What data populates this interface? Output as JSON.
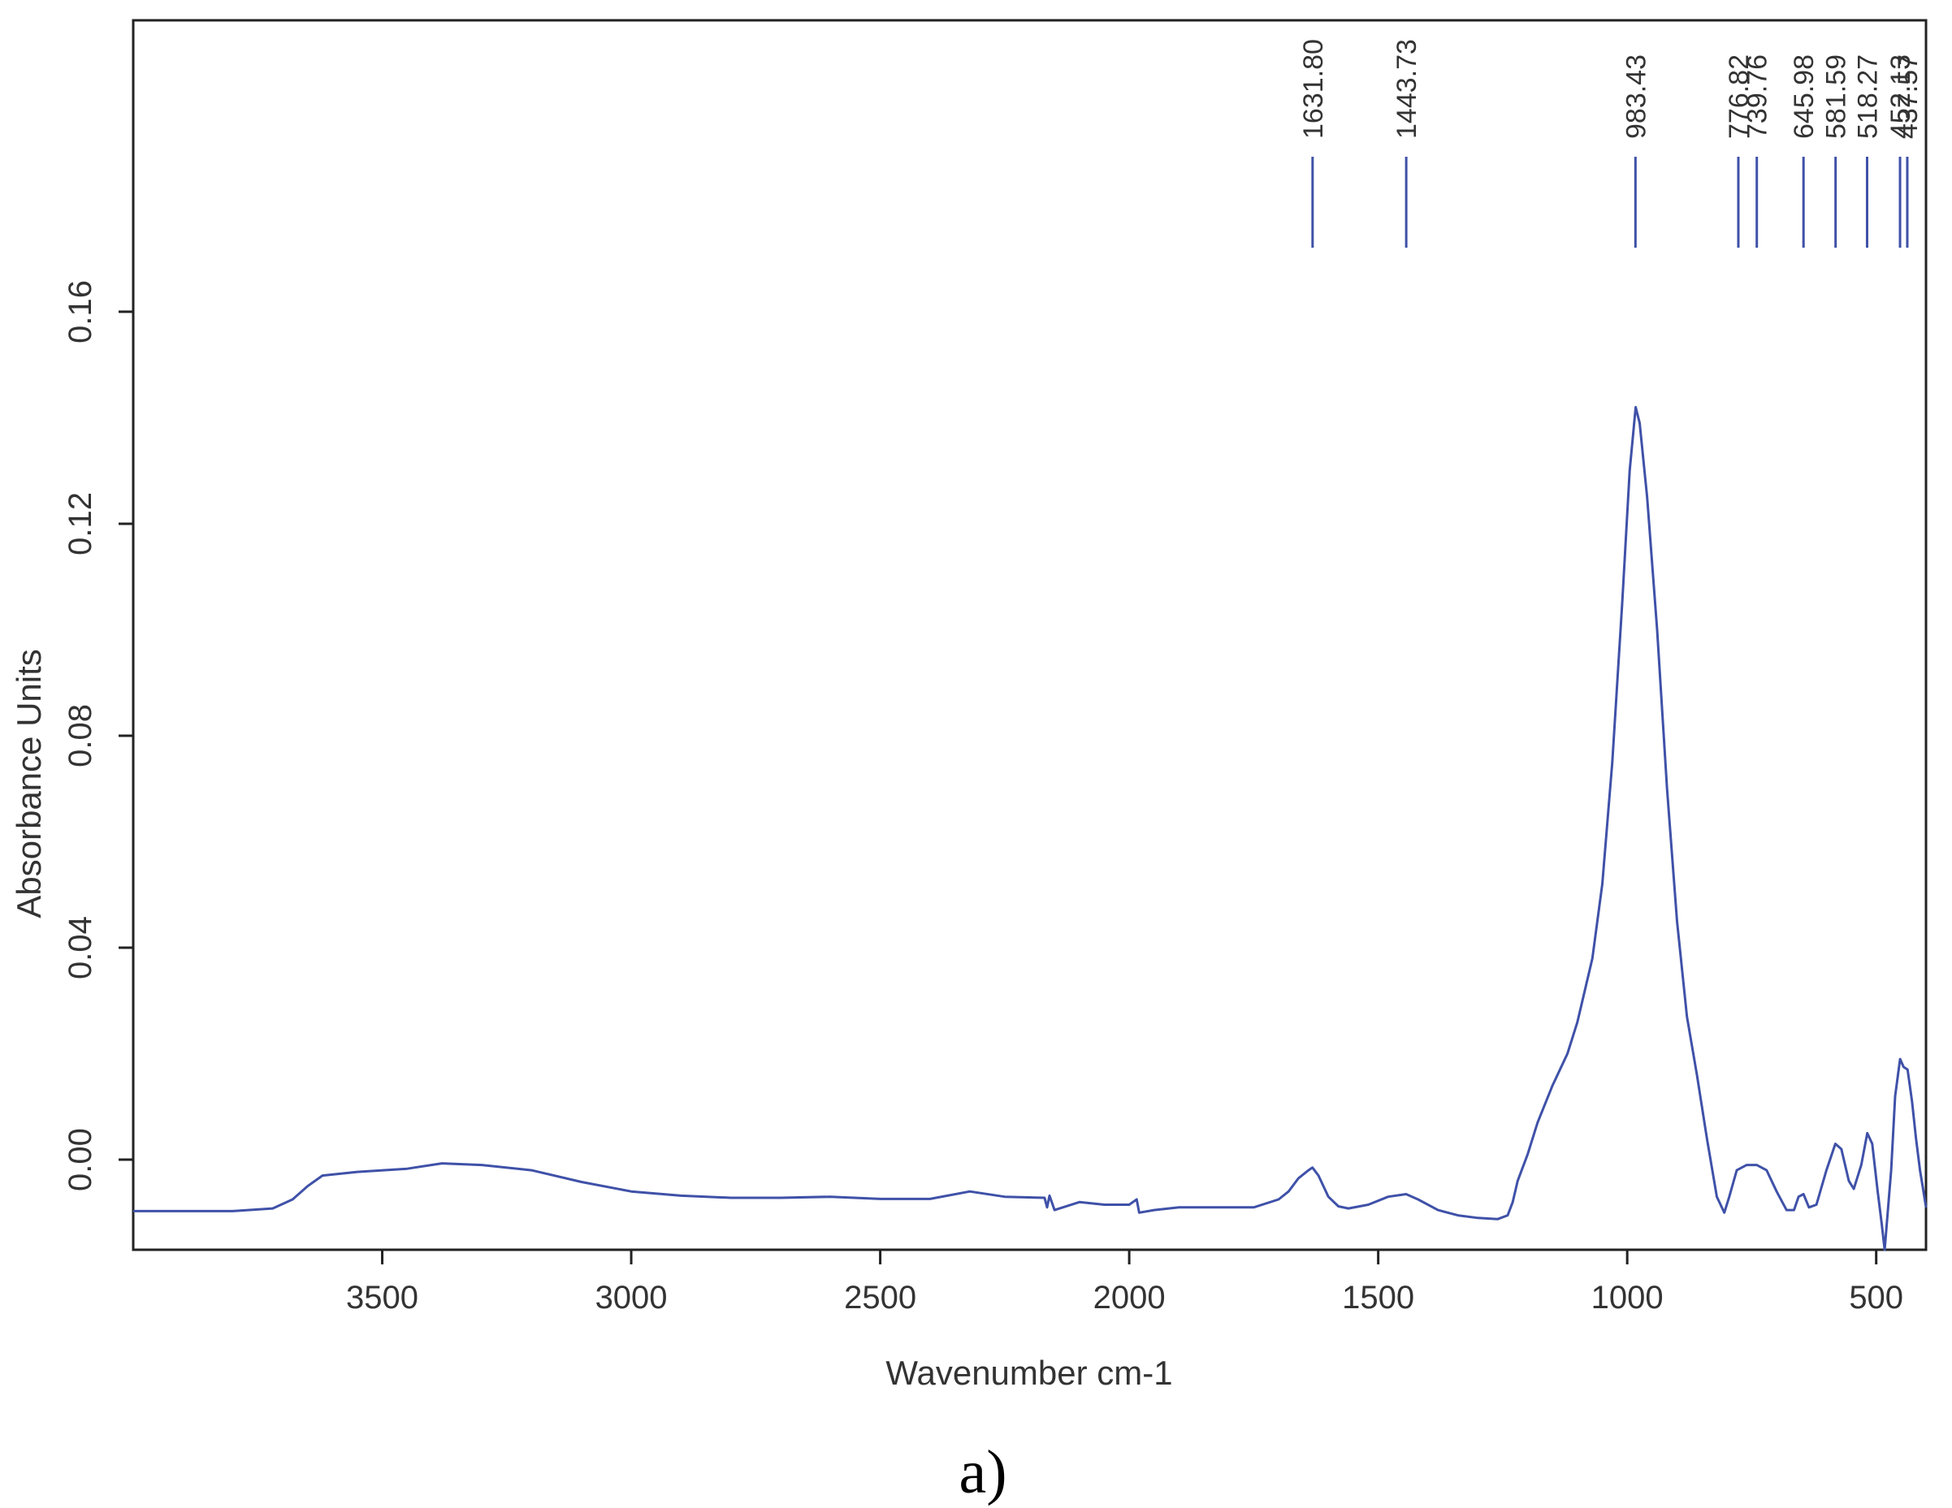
{
  "figure": {
    "panel_label": "a)"
  },
  "colors": {
    "trace": "#3f51a8",
    "axes": "#222222",
    "text": "#333333"
  },
  "chart_data": {
    "type": "line",
    "title": "",
    "xlabel": "Wavenumber cm-1",
    "ylabel": "Absorbance Units",
    "xlim": [
      4000,
      400
    ],
    "ylim": [
      -0.017,
      0.215
    ],
    "x_reversed": true,
    "grid": false,
    "legend": "none",
    "x_ticks": [
      3500,
      3000,
      2500,
      2000,
      1500,
      1000,
      500
    ],
    "x_tick_labels": [
      "3500",
      "3000",
      "2500",
      "2000",
      "1500",
      "1000",
      "500"
    ],
    "y_ticks": [
      0.0,
      0.04,
      0.08,
      0.12,
      0.16
    ],
    "y_tick_labels": [
      "0.00",
      "0.04",
      "0.08",
      "0.12",
      "0.16"
    ],
    "peak_labels": [
      {
        "x": 1631.8,
        "label": "1631.80"
      },
      {
        "x": 1443.73,
        "label": "1443.73"
      },
      {
        "x": 983.43,
        "label": "983.43"
      },
      {
        "x": 776.82,
        "label": "776.82"
      },
      {
        "x": 739.76,
        "label": "739.76"
      },
      {
        "x": 645.98,
        "label": "645.98"
      },
      {
        "x": 581.59,
        "label": "581.59"
      },
      {
        "x": 518.27,
        "label": "518.27"
      },
      {
        "x": 452.13,
        "label": "452.13"
      },
      {
        "x": 437.57,
        "label": "437.57"
      }
    ],
    "series": [
      {
        "x": [
          4000,
          3900,
          3800,
          3720,
          3680,
          3650,
          3620,
          3550,
          3450,
          3380,
          3300,
          3200,
          3100,
          3000,
          2900,
          2800,
          2700,
          2600,
          2500,
          2400,
          2320,
          2250,
          2170,
          2165,
          2160,
          2150,
          2100,
          2050,
          2000,
          1985,
          1980,
          1950,
          1900,
          1800,
          1750,
          1700,
          1680,
          1660,
          1640,
          1632,
          1620,
          1600,
          1580,
          1560,
          1520,
          1480,
          1444,
          1420,
          1380,
          1340,
          1300,
          1260,
          1240,
          1230,
          1220,
          1200,
          1180,
          1150,
          1120,
          1100,
          1070,
          1050,
          1030,
          1010,
          995,
          983,
          975,
          960,
          940,
          920,
          900,
          880,
          860,
          840,
          820,
          805,
          795,
          780,
          760,
          740,
          720,
          700,
          680,
          665,
          656,
          646,
          635,
          620,
          600,
          582,
          570,
          555,
          545,
          530,
          518,
          508,
          497,
          489,
          483,
          470,
          462,
          452,
          445,
          437,
          428,
          420,
          412,
          405,
          400
        ],
        "y": [
          -0.0097,
          -0.0097,
          -0.0097,
          -0.0092,
          -0.0075,
          -0.005,
          -0.003,
          -0.0023,
          -0.0017,
          -0.0007,
          -0.001,
          -0.002,
          -0.0042,
          -0.006,
          -0.0068,
          -0.0072,
          -0.0072,
          -0.007,
          -0.0074,
          -0.0074,
          -0.006,
          -0.007,
          -0.0072,
          -0.009,
          -0.0068,
          -0.0095,
          -0.008,
          -0.0085,
          -0.0085,
          -0.0075,
          -0.01,
          -0.0095,
          -0.009,
          -0.009,
          -0.009,
          -0.0075,
          -0.006,
          -0.0035,
          -0.002,
          -0.0015,
          -0.003,
          -0.007,
          -0.0088,
          -0.0092,
          -0.0085,
          -0.007,
          -0.0065,
          -0.0075,
          -0.0095,
          -0.0105,
          -0.011,
          -0.0112,
          -0.0105,
          -0.008,
          -0.004,
          0.001,
          0.007,
          0.014,
          0.02,
          0.026,
          0.038,
          0.052,
          0.075,
          0.105,
          0.13,
          0.142,
          0.139,
          0.125,
          0.1,
          0.07,
          0.045,
          0.027,
          0.016,
          0.004,
          -0.007,
          -0.01,
          -0.007,
          -0.002,
          -0.001,
          -0.001,
          -0.002,
          -0.006,
          -0.0095,
          -0.0095,
          -0.007,
          -0.0065,
          -0.009,
          -0.0085,
          -0.002,
          0.003,
          0.002,
          -0.004,
          -0.0055,
          -0.001,
          0.005,
          0.003,
          -0.006,
          -0.012,
          -0.017,
          -0.002,
          0.012,
          0.019,
          0.0175,
          0.017,
          0.011,
          0.004,
          -0.002,
          -0.006,
          -0.009
        ]
      }
    ]
  }
}
